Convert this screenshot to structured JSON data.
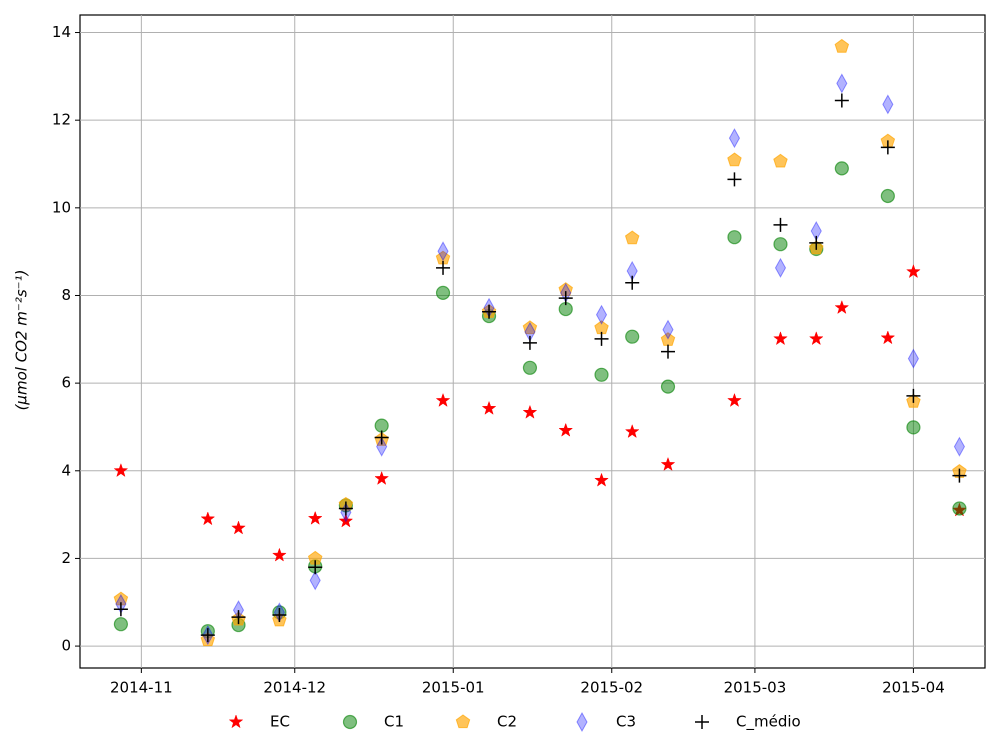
{
  "chart_data": {
    "type": "scatter",
    "y_label": "(μmol CO2 m⁻²s⁻¹)",
    "x": [
      -4,
      13,
      19,
      27,
      34,
      40,
      47,
      59,
      68,
      76,
      83,
      90,
      96,
      103,
      116,
      125,
      132,
      137,
      146,
      151,
      160
    ],
    "xlim": [
      -12,
      165
    ],
    "xticks": [
      {
        "value": 0,
        "label": "2014-11"
      },
      {
        "value": 30,
        "label": "2014-12"
      },
      {
        "value": 61,
        "label": "2015-01"
      },
      {
        "value": 92,
        "label": "2015-02"
      },
      {
        "value": 120,
        "label": "2015-03"
      },
      {
        "value": 151,
        "label": "2015-04"
      }
    ],
    "ylim": [
      -0.5,
      14.4
    ],
    "yticks": [
      0,
      2,
      4,
      6,
      8,
      10,
      12,
      14
    ],
    "grid": true,
    "legend": "bottom",
    "series": [
      {
        "name": "EC",
        "color": "#ff0000",
        "marker": "star",
        "values": [
          4.0,
          2.9,
          2.69,
          2.07,
          2.91,
          2.85,
          3.82,
          5.6,
          5.42,
          5.33,
          4.92,
          3.78,
          4.89,
          4.14,
          5.6,
          7.01,
          7.01,
          7.72,
          7.03,
          8.54,
          3.1
        ]
      },
      {
        "name": "C1",
        "color": "#008000",
        "marker": "circle",
        "values": [
          0.5,
          0.34,
          0.48,
          0.77,
          1.82,
          3.21,
          5.03,
          8.06,
          7.53,
          6.35,
          7.69,
          6.19,
          7.06,
          5.92,
          9.33,
          9.17,
          9.06,
          10.9,
          10.27,
          4.99,
          3.14
        ]
      },
      {
        "name": "C2",
        "color": "#ffa500",
        "marker": "pentagon",
        "values": [
          1.07,
          0.14,
          0.61,
          0.59,
          2.0,
          3.23,
          4.71,
          8.85,
          7.63,
          7.26,
          8.13,
          7.26,
          9.31,
          6.99,
          11.09,
          11.06,
          9.08,
          13.68,
          11.52,
          5.58,
          3.98
        ]
      },
      {
        "name": "C3",
        "color": "#0000ff",
        "marker": "diamond",
        "values": [
          0.96,
          0.25,
          0.82,
          0.77,
          1.5,
          3.05,
          4.55,
          9.01,
          7.72,
          7.17,
          8.06,
          7.56,
          8.56,
          7.22,
          11.59,
          8.63,
          9.47,
          12.84,
          12.36,
          6.56,
          4.55
        ]
      },
      {
        "name": "C_médio",
        "color": "#000000",
        "marker": "plus",
        "values": [
          0.84,
          0.25,
          0.66,
          0.71,
          1.8,
          3.14,
          4.76,
          8.63,
          7.63,
          6.92,
          7.94,
          7.01,
          8.29,
          6.72,
          10.65,
          9.61,
          9.2,
          12.45,
          11.38,
          5.71,
          3.89
        ]
      }
    ]
  }
}
